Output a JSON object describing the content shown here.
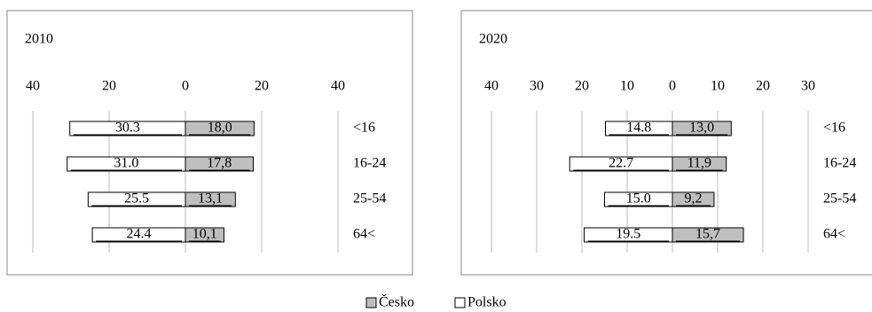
{
  "chart_data": [
    {
      "type": "bar",
      "title": "2010",
      "categories": [
        "<16",
        "16-24",
        "25-54",
        "64<"
      ],
      "series": [
        {
          "name": "Česko",
          "color": "#bfbfbf",
          "values": [
            18.0,
            17.8,
            13.1,
            10.1
          ],
          "value_labels": [
            "18,0",
            "17,8",
            "13,1",
            "10,1"
          ]
        },
        {
          "name": "Polsko",
          "color": "#ffffff",
          "values": [
            30.3,
            31.0,
            25.5,
            24.4
          ],
          "value_labels": [
            "30.3",
            "31.0",
            "25.5",
            "24.4"
          ]
        }
      ],
      "xlim": [
        -40,
        40
      ],
      "xticks": [
        {
          "value": -40,
          "label": "40"
        },
        {
          "value": -20,
          "label": "20"
        },
        0,
        20,
        40
      ],
      "grid": true
    },
    {
      "type": "bar",
      "title": "2020",
      "categories": [
        "<16",
        "16-24",
        "25-54",
        "64<"
      ],
      "series": [
        {
          "name": "Česko",
          "color": "#bfbfbf",
          "values": [
            13.0,
            11.9,
            9.2,
            15.7
          ],
          "value_labels": [
            "13,0",
            "11,9",
            "9,2",
            "15,7"
          ]
        },
        {
          "name": "Polsko",
          "color": "#ffffff",
          "values": [
            14.8,
            22.7,
            15.0,
            19.5
          ],
          "value_labels": [
            "14.8",
            "22.7",
            "15.0",
            "19.5"
          ]
        }
      ],
      "xlim": [
        -40,
        30
      ],
      "xticks": [
        {
          "value": -40,
          "label": "40"
        },
        {
          "value": -30,
          "label": "30"
        },
        {
          "value": -20,
          "label": "20"
        },
        {
          "value": -10,
          "label": "10"
        },
        0,
        10,
        20,
        30
      ],
      "grid": true
    }
  ]
}
